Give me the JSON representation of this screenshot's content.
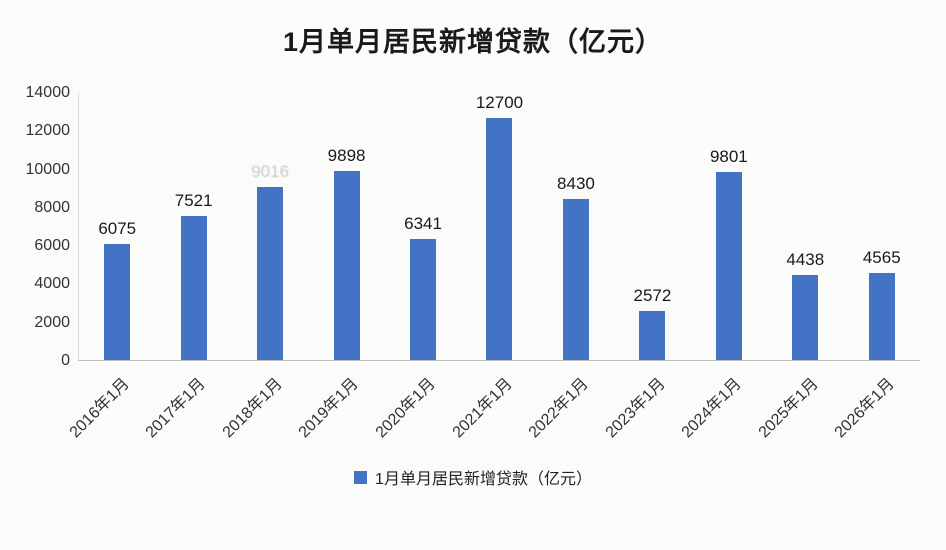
{
  "title": "1月单月居民新增贷款（亿元）",
  "legend": {
    "label": "1月单月居民新增贷款（亿元）",
    "swatch_color": "#4472c4"
  },
  "chart_data": {
    "type": "bar",
    "title": "1月单月居民新增贷款（亿元）",
    "categories": [
      "2016年1月",
      "2017年1月",
      "2018年1月",
      "2019年1月",
      "2020年1月",
      "2021年1月",
      "2022年1月",
      "2023年1月",
      "2024年1月",
      "2025年1月",
      "2026年1月"
    ],
    "values": [
      6075,
      7521,
      9016,
      9898,
      6341,
      12700,
      8430,
      2572,
      9801,
      4438,
      4565
    ],
    "value_labels": [
      "6075",
      "7521",
      "9016",
      "9898",
      "6341",
      "12700",
      "8430",
      "2572",
      "9801",
      "4438",
      "4565"
    ],
    "xlabel": "",
    "ylabel": "",
    "ylim": [
      0,
      14000
    ],
    "yticks": [
      0,
      2000,
      4000,
      6000,
      8000,
      10000,
      12000,
      14000
    ],
    "bar_color": "#4472c4",
    "grid": false,
    "legend_position": "bottom",
    "faded_label_indices": [
      2
    ]
  }
}
